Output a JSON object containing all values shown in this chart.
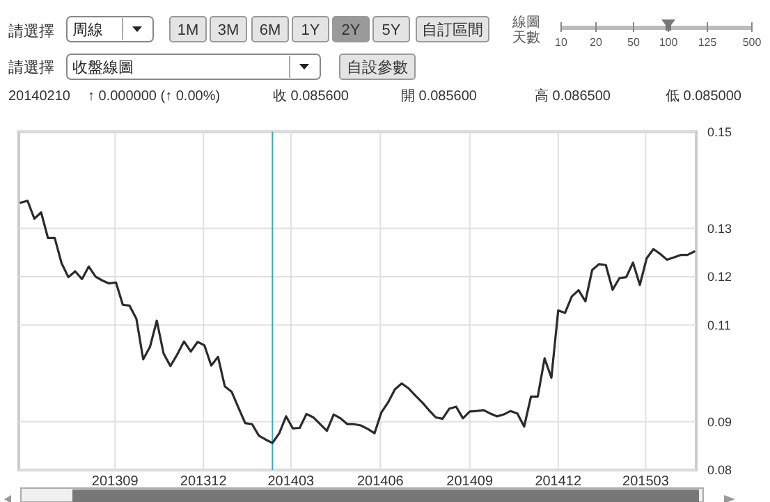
{
  "chart_data": {
    "type": "line",
    "x": [
      "2013-05-27",
      "2013-06-03",
      "2013-06-10",
      "2013-06-17",
      "2013-06-24",
      "2013-07-01",
      "2013-07-08",
      "2013-07-15",
      "2013-07-22",
      "2013-07-29",
      "2013-08-05",
      "2013-08-12",
      "2013-08-19",
      "2013-08-26",
      "2013-09-02",
      "2013-09-09",
      "2013-09-16",
      "2013-09-23",
      "2013-09-30",
      "2013-10-07",
      "2013-10-14",
      "2013-10-21",
      "2013-10-28",
      "2013-11-04",
      "2013-11-11",
      "2013-11-18",
      "2013-11-25",
      "2013-12-02",
      "2013-12-09",
      "2013-12-16",
      "2013-12-23",
      "2013-12-30",
      "2014-01-06",
      "2014-01-13",
      "2014-01-20",
      "2014-01-27",
      "2014-02-03",
      "2014-02-10",
      "2014-02-17",
      "2014-02-24",
      "2014-03-03",
      "2014-03-10",
      "2014-03-17",
      "2014-03-24",
      "2014-03-31",
      "2014-04-07",
      "2014-04-14",
      "2014-04-21",
      "2014-04-28",
      "2014-05-05",
      "2014-05-12",
      "2014-05-19",
      "2014-05-26",
      "2014-06-02",
      "2014-06-09",
      "2014-06-16",
      "2014-06-23",
      "2014-06-30",
      "2014-07-07",
      "2014-07-14",
      "2014-07-21",
      "2014-07-28",
      "2014-08-04",
      "2014-08-11",
      "2014-08-18",
      "2014-08-25",
      "2014-09-01",
      "2014-09-08",
      "2014-09-15",
      "2014-09-22",
      "2014-09-29",
      "2014-10-06",
      "2014-10-13",
      "2014-10-20",
      "2014-10-27",
      "2014-11-03",
      "2014-11-10",
      "2014-11-17",
      "2014-11-24",
      "2014-12-01",
      "2014-12-08",
      "2014-12-15",
      "2014-12-22",
      "2014-12-29",
      "2015-01-05",
      "2015-01-12",
      "2015-01-19",
      "2015-01-26",
      "2015-02-02",
      "2015-02-09",
      "2015-02-16",
      "2015-02-23",
      "2015-03-02",
      "2015-03-09",
      "2015-03-16",
      "2015-03-23",
      "2015-03-30",
      "2015-04-06",
      "2015-04-13",
      "2015-04-20"
    ],
    "series": [
      {
        "color": "#2b2b2b",
        "values": [
          0.1353,
          0.1357,
          0.132,
          0.1333,
          0.128,
          0.128,
          0.1228,
          0.1199,
          0.1211,
          0.1195,
          0.1221,
          0.12,
          0.1192,
          0.1186,
          0.1188,
          0.1142,
          0.114,
          0.1113,
          0.1029,
          0.1055,
          0.1109,
          0.1041,
          0.1015,
          0.1039,
          0.1066,
          0.1045,
          0.1065,
          0.1058,
          0.1016,
          0.1034,
          0.0973,
          0.0962,
          0.0929,
          0.0897,
          0.0895,
          0.0871,
          0.0863,
          0.0856,
          0.0876,
          0.0911,
          0.0886,
          0.0887,
          0.0916,
          0.0909,
          0.0895,
          0.0881,
          0.0915,
          0.0907,
          0.0895,
          0.0895,
          0.0892,
          0.0885,
          0.0876,
          0.0919,
          0.094,
          0.0967,
          0.0979,
          0.0969,
          0.0954,
          0.094,
          0.0924,
          0.0909,
          0.0906,
          0.0927,
          0.0931,
          0.0907,
          0.0921,
          0.0922,
          0.0924,
          0.0917,
          0.0911,
          0.0915,
          0.0922,
          0.0917,
          0.089,
          0.0952,
          0.0952,
          0.1031,
          0.0991,
          0.113,
          0.1125,
          0.1159,
          0.1172,
          0.1149,
          0.1214,
          0.1226,
          0.1224,
          0.1173,
          0.1197,
          0.1199,
          0.1229,
          0.1183,
          0.1238,
          0.1257,
          0.1247,
          0.1235,
          0.124,
          0.1245,
          0.1245,
          0.1252
        ]
      }
    ],
    "xlim": [
      "2013-05-25",
      "2015-04-22"
    ],
    "xticks": [
      {
        "value": "2013-09-01",
        "label": "201309"
      },
      {
        "value": "2013-12-01",
        "label": "201312"
      },
      {
        "value": "2014-03-01",
        "label": "201403"
      },
      {
        "value": "2014-06-01",
        "label": "201406"
      },
      {
        "value": "2014-09-01",
        "label": "201409"
      },
      {
        "value": "2014-12-01",
        "label": "201412"
      },
      {
        "value": "2015-03-01",
        "label": "201503"
      }
    ],
    "ylim": [
      0.08,
      0.15
    ],
    "yticks": [
      0.08,
      0.09,
      0.11,
      0.12,
      0.13,
      0.15
    ],
    "grid": true,
    "ref_lines": [
      {
        "axis": "x",
        "value": "2014-02-10",
        "color": "#3aa6c4"
      }
    ],
    "annotations": [
      "請選擇",
      "周線",
      "1M",
      "3M",
      "6M",
      "1Y",
      "2Y",
      "5Y",
      "自訂區間",
      "線圖天數",
      "10",
      "20",
      "50",
      "100",
      "125",
      "500",
      "請選擇",
      "收盤線圖",
      "自設參數",
      "20140210",
      "↑ 0.000000 (↑ 0.00%)",
      "收 0.085600",
      "開 0.085600",
      "高 0.086500",
      "低 0.085000"
    ]
  }
}
